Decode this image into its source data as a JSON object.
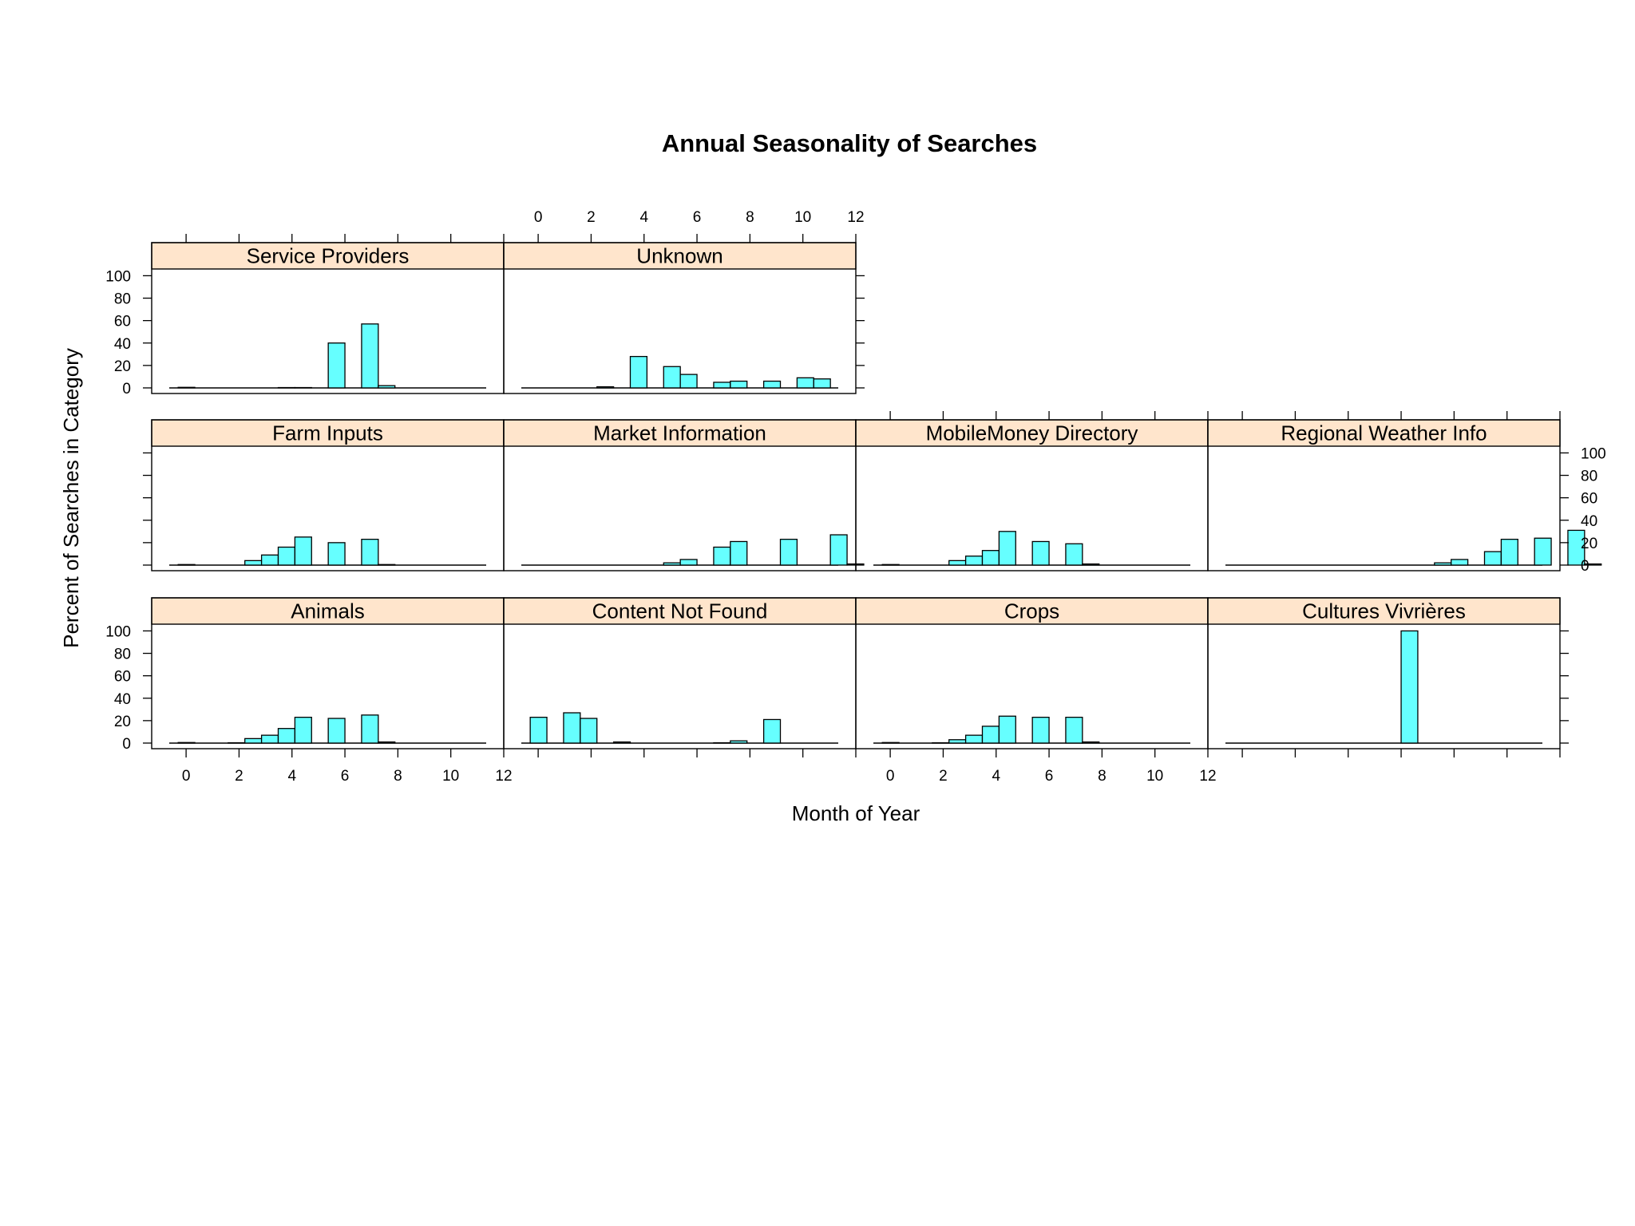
{
  "chart_data": {
    "type": "bar",
    "title": "Annual Seasonality of Searches",
    "xlabel": "Month of Year",
    "ylabel": "Percent of Searches in Category",
    "xlim": [
      -1.3,
      12
    ],
    "ylim": [
      -5,
      106
    ],
    "x_ticks": [
      0,
      2,
      4,
      6,
      8,
      10,
      12
    ],
    "y_ticks": [
      0,
      20,
      40,
      60,
      80,
      100
    ],
    "layout": "4 columns x 3 rows trellis, bottom row first",
    "panels": [
      {
        "name": "Animals",
        "col": 0,
        "row": 0,
        "values": [
          0.5,
          0,
          0,
          0.3,
          4,
          7,
          13,
          23,
          0,
          22,
          0,
          25,
          1,
          0
        ]
      },
      {
        "name": "Content Not Found",
        "col": 1,
        "row": 0,
        "values": [
          23,
          0,
          27,
          22,
          0,
          1,
          0,
          0,
          0,
          0,
          0,
          0.3,
          2,
          0,
          21
        ]
      },
      {
        "name": "Crops",
        "col": 2,
        "row": 0,
        "values": [
          0.5,
          0,
          0,
          0.3,
          3,
          7,
          15,
          24,
          0,
          23,
          0,
          23,
          1,
          0
        ]
      },
      {
        "name": "Cultures Vivrières",
        "col": 3,
        "row": 0,
        "values": [
          0,
          0,
          0,
          0,
          0,
          0,
          0,
          0,
          0,
          0,
          100,
          0
        ]
      },
      {
        "name": "Farm Inputs",
        "col": 0,
        "row": 1,
        "values": [
          0.5,
          0,
          0,
          0,
          4,
          9,
          16,
          25,
          0,
          20,
          0,
          23,
          0.5,
          0
        ]
      },
      {
        "name": "Market Information",
        "col": 1,
        "row": 1,
        "values": [
          0,
          0,
          0,
          0,
          0,
          0,
          0,
          0,
          2,
          5,
          0,
          16,
          21,
          0,
          0,
          23,
          0,
          0,
          27,
          1
        ]
      },
      {
        "name": "MobileMoney Directory",
        "col": 2,
        "row": 1,
        "values": [
          0.5,
          0,
          0,
          0,
          4,
          8,
          13,
          30,
          0,
          21,
          0,
          19,
          1,
          0
        ]
      },
      {
        "name": "Regional Weather Info",
        "col": 3,
        "row": 1,
        "values": [
          0,
          0,
          0,
          0,
          0,
          0,
          0,
          0,
          0,
          0,
          0,
          0,
          2,
          5,
          0,
          12,
          23,
          0,
          24,
          0,
          31,
          1
        ]
      },
      {
        "name": "Service Providers",
        "col": 0,
        "row": 2,
        "values": [
          0.5,
          0,
          0,
          0,
          0,
          0,
          0.3,
          0.3,
          0,
          40,
          0,
          57,
          2,
          0
        ]
      },
      {
        "name": "Unknown",
        "col": 1,
        "row": 2,
        "values": [
          0,
          0,
          0,
          0,
          1,
          0,
          28,
          0,
          19,
          12,
          0,
          5,
          6,
          0,
          6,
          0,
          9,
          8
        ]
      }
    ]
  }
}
